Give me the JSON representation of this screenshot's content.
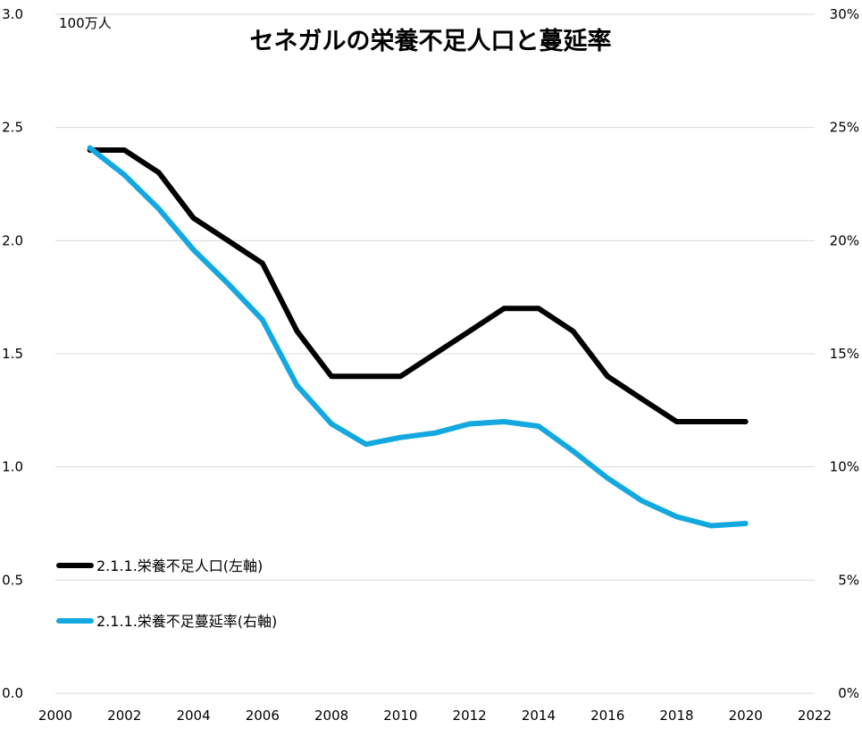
{
  "chart_data": {
    "type": "line",
    "title": "セネガルの栄養不足人口と蔓延率",
    "y_unit_label": "100万人",
    "x_ticks": [
      "2000",
      "2002",
      "2004",
      "2006",
      "2008",
      "2010",
      "2012",
      "2014",
      "2016",
      "2018",
      "2020",
      "2022"
    ],
    "x_range": [
      2000,
      2022
    ],
    "y_left_range": [
      0,
      3
    ],
    "y_left_ticks": [
      "0.0",
      "0.5",
      "1.0",
      "1.5",
      "2.0",
      "2.5",
      "3.0"
    ],
    "y_right_range": [
      0,
      30
    ],
    "y_right_ticks": [
      "0%",
      "5%",
      "10%",
      "15%",
      "20%",
      "25%",
      "30%"
    ],
    "grid": true,
    "legend_position": "left",
    "series": [
      {
        "name": "2.1.1.栄養不足人口(左軸)",
        "axis": "left",
        "color": "#000000",
        "x": [
          2001,
          2002,
          2003,
          2004,
          2005,
          2006,
          2007,
          2008,
          2009,
          2010,
          2011,
          2012,
          2013,
          2014,
          2015,
          2016,
          2017,
          2018,
          2019,
          2020
        ],
        "values": [
          2.4,
          2.4,
          2.3,
          2.1,
          2.0,
          1.9,
          1.6,
          1.4,
          1.4,
          1.4,
          1.5,
          1.6,
          1.7,
          1.7,
          1.6,
          1.4,
          1.3,
          1.2,
          1.2,
          1.2
        ]
      },
      {
        "name": "2.1.1.栄養不足蔓延率(右軸)",
        "axis": "right",
        "color": "#14a8e0",
        "x": [
          2001,
          2002,
          2003,
          2004,
          2005,
          2006,
          2007,
          2008,
          2009,
          2010,
          2011,
          2012,
          2013,
          2014,
          2015,
          2016,
          2017,
          2018,
          2019,
          2020
        ],
        "values": [
          24.1,
          22.9,
          21.4,
          19.6,
          18.1,
          16.5,
          13.6,
          11.9,
          11.0,
          11.3,
          11.5,
          11.9,
          12.0,
          11.8,
          10.7,
          9.5,
          8.5,
          7.8,
          7.4,
          7.5
        ]
      }
    ]
  }
}
